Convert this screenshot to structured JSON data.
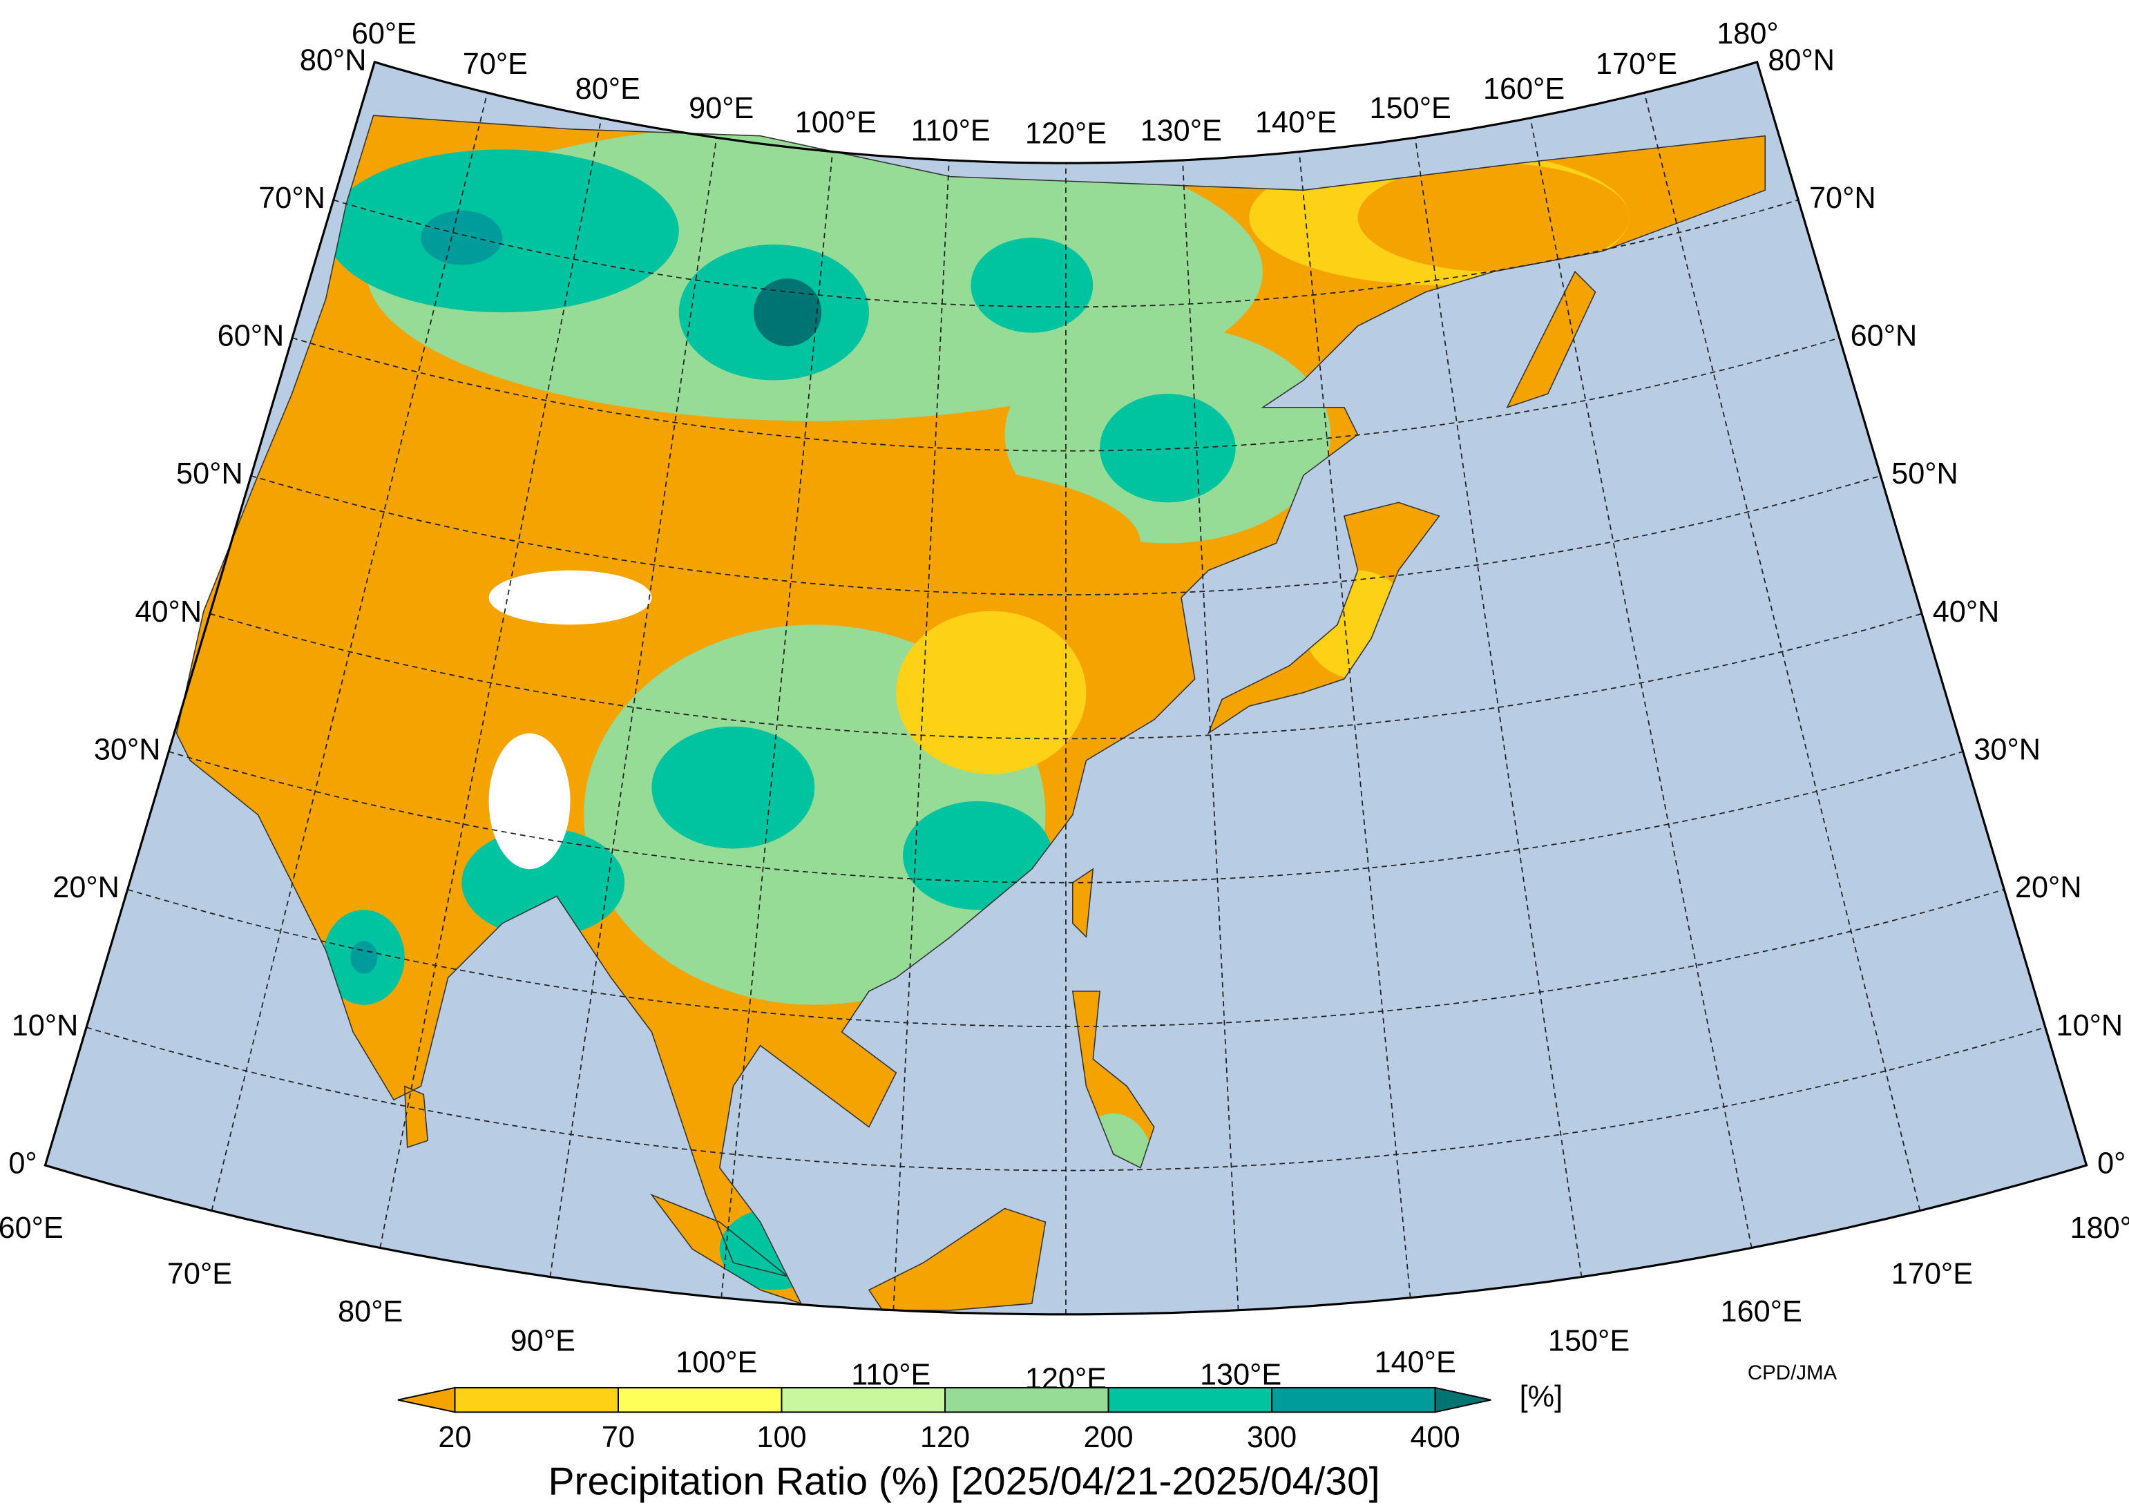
{
  "map": {
    "lon_labels_top": [
      "60°E",
      "70°E",
      "80°E",
      "90°E",
      "100°E",
      "110°E",
      "120°E",
      "130°E",
      "140°E",
      "150°E",
      "160°E",
      "170°E",
      "180°"
    ],
    "lon_labels_bottom": [
      "60°E",
      "70°E",
      "80°E",
      "90°E",
      "100°E",
      "110°E",
      "120°E",
      "130°E",
      "140°E",
      "150°E",
      "160°E",
      "170°E",
      "180°"
    ],
    "lat_labels_left": [
      "0°",
      "10°N",
      "20°N",
      "30°N",
      "40°N",
      "50°N",
      "60°N",
      "70°N",
      "80°N"
    ],
    "lat_labels_right": [
      "0°",
      "10°N",
      "20°N",
      "30°N",
      "40°N",
      "50°N",
      "60°N",
      "70°N",
      "80°N"
    ],
    "credit": "CPD/JMA"
  },
  "colorbar": {
    "ticks": [
      20,
      70,
      100,
      120,
      200,
      300,
      400
    ],
    "colors": [
      "#f5a300",
      "#fcd116",
      "#ffff5a",
      "#c8f7a0",
      "#96dc96",
      "#00c3a0",
      "#009b9b",
      "#007373"
    ],
    "unit_label": "[%]",
    "title": "Precipitation Ratio (%) [2025/04/21-2025/04/30]"
  }
}
